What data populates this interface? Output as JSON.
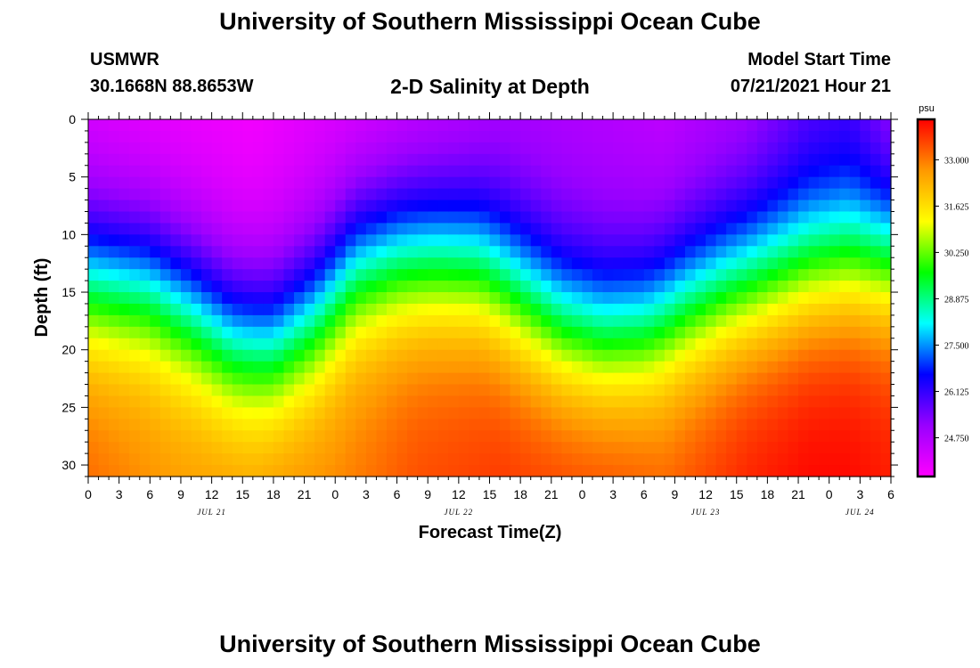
{
  "header": {
    "title": "University of Southern Mississippi Ocean Cube",
    "station_name": "USMWR",
    "station_coords": "30.1668N  88.8653W",
    "chart_title": "2-D Salinity at Depth",
    "start_label": "Model Start Time",
    "start_value": "07/21/2021 Hour 21"
  },
  "footer": {
    "title": "University of Southern Mississippi Ocean Cube"
  },
  "chart_data": {
    "type": "heatmap",
    "title": "2-D Salinity at Depth",
    "xlabel": "Forecast Time(Z)",
    "ylabel": "Depth (ft)",
    "x_unit": "hours",
    "x_range": [
      0,
      78
    ],
    "x_ticks": [
      0,
      3,
      6,
      9,
      12,
      15,
      18,
      21,
      24,
      27,
      30,
      33,
      36,
      39,
      42,
      45,
      48,
      51,
      54,
      57,
      60,
      63,
      66,
      69,
      72,
      75,
      78
    ],
    "x_tick_labels": [
      "0",
      "3",
      "6",
      "9",
      "12",
      "15",
      "18",
      "21",
      "0",
      "3",
      "6",
      "9",
      "12",
      "15",
      "18",
      "21",
      "0",
      "3",
      "6",
      "9",
      "12",
      "15",
      "18",
      "21",
      "0",
      "3",
      "6"
    ],
    "date_labels": [
      {
        "x": 12,
        "label": "JUL 21"
      },
      {
        "x": 36,
        "label": "JUL 22"
      },
      {
        "x": 60,
        "label": "JUL 23"
      },
      {
        "x": 75,
        "label": "JUL 24"
      }
    ],
    "y_range": [
      0,
      31
    ],
    "y_inverted": true,
    "y_ticks": [
      0,
      5,
      10,
      15,
      20,
      25,
      30
    ],
    "colorbar": {
      "unit": "psu",
      "min": 23.6,
      "max": 34.2,
      "tick_values": [
        24.75,
        26.125,
        27.5,
        28.875,
        30.25,
        31.625,
        33.0
      ],
      "tick_labels": [
        "24.750",
        "26.125",
        "27.500",
        "28.875",
        "30.250",
        "31.625",
        "33.000"
      ],
      "colors": [
        "#ff00ff",
        "#9900ff",
        "#0000ff",
        "#00ffff",
        "#00ff00",
        "#ffff00",
        "#ff9900",
        "#ff0000"
      ]
    },
    "halocline_depth_ft": {
      "hours": [
        0,
        6,
        10,
        14,
        18,
        22,
        26,
        30,
        34,
        38,
        42,
        46,
        50,
        54,
        58,
        62,
        66,
        70,
        74,
        78
      ],
      "values": [
        14,
        14.5,
        16.5,
        19,
        19.5,
        17,
        13,
        12,
        12,
        12.5,
        15,
        17.5,
        18.5,
        18,
        16,
        14.5,
        13.5,
        12.5,
        12,
        12
      ]
    },
    "surface_salinity_psu": {
      "hours": [
        0,
        8,
        16,
        24,
        32,
        40,
        48,
        56,
        64,
        70,
        74,
        78
      ],
      "values": [
        24.3,
        24.0,
        23.8,
        24.2,
        24.7,
        25.0,
        24.8,
        24.6,
        25.1,
        25.9,
        26.1,
        25.3
      ]
    },
    "bottom_salinity_psu": {
      "hours": [
        0,
        8,
        16,
        24,
        32,
        40,
        48,
        56,
        64,
        70,
        74,
        78
      ],
      "values": [
        33.1,
        32.6,
        32.3,
        32.8,
        33.4,
        33.6,
        33.3,
        33.1,
        33.8,
        34.1,
        34.1,
        33.9
      ]
    }
  }
}
